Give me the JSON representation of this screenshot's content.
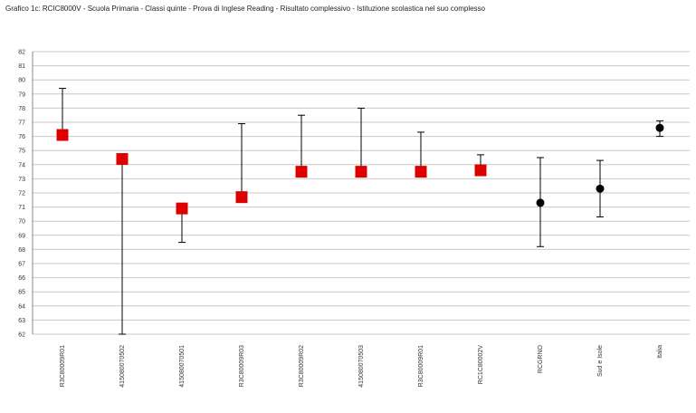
{
  "chart_data": {
    "type": "scatter",
    "title": "Grafico 1c: RCIC8000V - Scuola Primaria - Classi quinte - Prova di Inglese Reading - Risultato complessivo - Istituzione scolastica nel suo complesso",
    "xlabel": "",
    "ylabel": "",
    "ylim": [
      62,
      82
    ],
    "yticks": [
      82,
      81,
      80,
      79,
      78,
      77,
      76,
      75,
      74,
      73,
      72,
      71,
      70,
      69,
      68,
      67,
      66,
      65,
      64,
      63,
      62
    ],
    "ytick_labels": [
      "82",
      "81",
      "80",
      "79",
      "78",
      "77",
      "76",
      "75",
      "74",
      "73",
      "72",
      "71",
      "70",
      "69",
      "68",
      "67",
      "66",
      "65",
      "64",
      "63",
      "62"
    ],
    "grid": true,
    "categories": [
      "R3C80009R01",
      "415080070502",
      "415080070501",
      "R3C80009R03",
      "R3C80009R02",
      "415080070503",
      "R3C80009R01",
      "RC1C80002V",
      "RCGRNO",
      "Sud e Isole",
      "Italia"
    ],
    "series": [
      {
        "marker": "square",
        "color": "#dd0000",
        "points": [
          {
            "category_index": 0,
            "value": 76.1,
            "low": null,
            "high": 79.4
          },
          {
            "category_index": 1,
            "value": 74.4,
            "low": 62.0,
            "high": null
          },
          {
            "category_index": 2,
            "value": 70.9,
            "low": 68.5,
            "high": null
          },
          {
            "category_index": 3,
            "value": 71.7,
            "low": null,
            "high": 76.9
          },
          {
            "category_index": 4,
            "value": 73.5,
            "low": null,
            "high": 77.5
          },
          {
            "category_index": 5,
            "value": 73.5,
            "low": null,
            "high": 78.0
          },
          {
            "category_index": 6,
            "value": 73.5,
            "low": null,
            "high": 76.3
          },
          {
            "category_index": 7,
            "value": 73.6,
            "low": null,
            "high": 74.7
          }
        ]
      },
      {
        "marker": "circle",
        "color": "#000000",
        "points": [
          {
            "category_index": 8,
            "value": 71.3,
            "low": 68.2,
            "high": 74.5
          },
          {
            "category_index": 9,
            "value": 72.3,
            "low": 70.3,
            "high": 74.3
          },
          {
            "category_index": 10,
            "value": 76.6,
            "low": 76.0,
            "high": 77.1
          }
        ]
      }
    ]
  }
}
